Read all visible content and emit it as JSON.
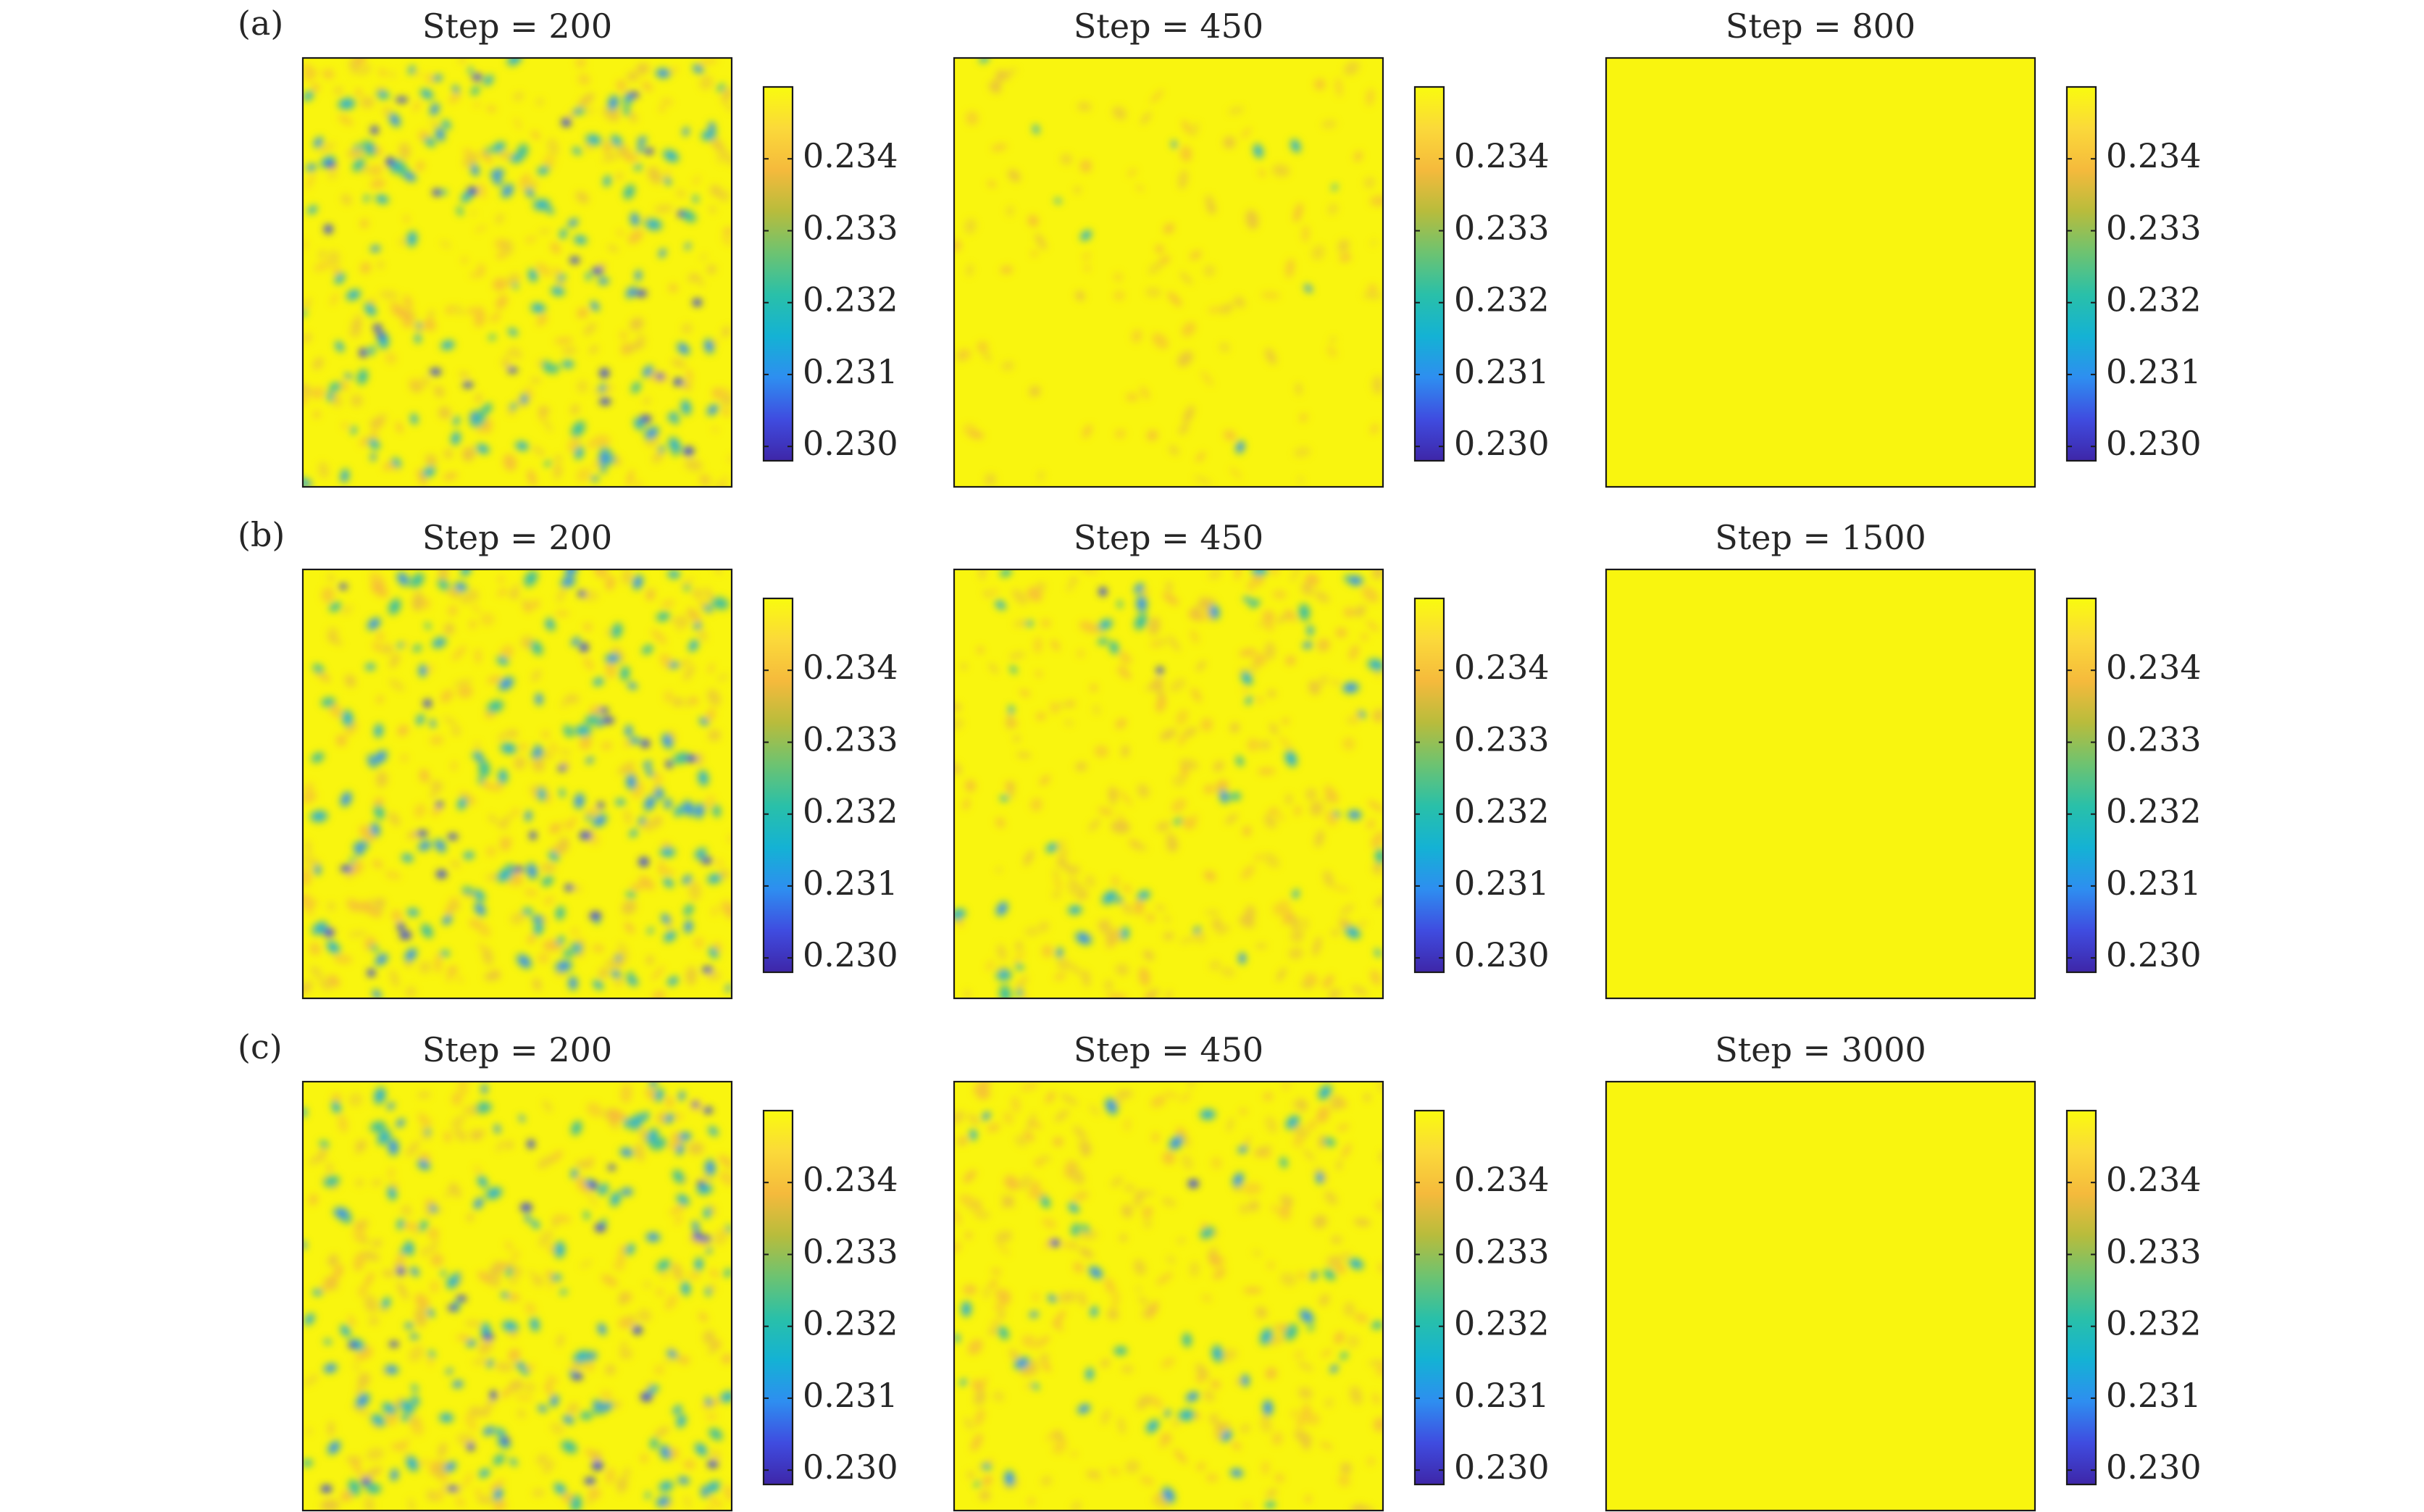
{
  "figure": {
    "row_labels": [
      "(a)",
      "(b)",
      "(c)"
    ],
    "colormap": {
      "name": "parula",
      "stops": [
        "#3e26a8",
        "#3f4ce0",
        "#2e8ef0",
        "#14b2d4",
        "#29c0a9",
        "#6dc371",
        "#b8bc3c",
        "#f5ba3c",
        "#fbd93a",
        "#f9fb0e"
      ]
    },
    "background_color": "#f9f50f"
  },
  "chart_data": [
    {
      "type": "heatmap",
      "row": 0,
      "col": 0,
      "title": "Step = 200",
      "pattern": "dense",
      "colorbar": {
        "range": [
          0.2298,
          0.235
        ],
        "ticks": [
          "0.234",
          "0.233",
          "0.232",
          "0.231",
          "0.230"
        ]
      }
    },
    {
      "type": "heatmap",
      "row": 0,
      "col": 1,
      "title": "Step = 450",
      "pattern": "sparse",
      "colorbar": {
        "range": [
          0.2298,
          0.235
        ],
        "ticks": [
          "0.234",
          "0.233",
          "0.232",
          "0.231",
          "0.230"
        ]
      }
    },
    {
      "type": "heatmap",
      "row": 0,
      "col": 2,
      "title": "Step = 800",
      "pattern": "uniform",
      "colorbar": {
        "range": [
          0.2298,
          0.235
        ],
        "ticks": [
          "0.234",
          "0.233",
          "0.232",
          "0.231",
          "0.230"
        ]
      }
    },
    {
      "type": "heatmap",
      "row": 1,
      "col": 0,
      "title": "Step = 200",
      "pattern": "dense",
      "colorbar": {
        "range": [
          0.2298,
          0.235
        ],
        "ticks": [
          "0.234",
          "0.233",
          "0.232",
          "0.231",
          "0.230"
        ]
      }
    },
    {
      "type": "heatmap",
      "row": 1,
      "col": 1,
      "title": "Step = 450",
      "pattern": "medium",
      "colorbar": {
        "range": [
          0.2298,
          0.235
        ],
        "ticks": [
          "0.234",
          "0.233",
          "0.232",
          "0.231",
          "0.230"
        ]
      }
    },
    {
      "type": "heatmap",
      "row": 1,
      "col": 2,
      "title": "Step = 1500",
      "pattern": "uniform",
      "colorbar": {
        "range": [
          0.2298,
          0.235
        ],
        "ticks": [
          "0.234",
          "0.233",
          "0.232",
          "0.231",
          "0.230"
        ]
      }
    },
    {
      "type": "heatmap",
      "row": 2,
      "col": 0,
      "title": "Step = 200",
      "pattern": "dense",
      "colorbar": {
        "range": [
          0.2298,
          0.235
        ],
        "ticks": [
          "0.234",
          "0.233",
          "0.232",
          "0.231",
          "0.230"
        ]
      }
    },
    {
      "type": "heatmap",
      "row": 2,
      "col": 1,
      "title": "Step = 450",
      "pattern": "medium",
      "colorbar": {
        "range": [
          0.2298,
          0.235
        ],
        "ticks": [
          "0.234",
          "0.233",
          "0.232",
          "0.231",
          "0.230"
        ]
      }
    },
    {
      "type": "heatmap",
      "row": 2,
      "col": 2,
      "title": "Step = 3000",
      "pattern": "uniform",
      "colorbar": {
        "range": [
          0.2298,
          0.235
        ],
        "ticks": [
          "0.234",
          "0.233",
          "0.232",
          "0.231",
          "0.230"
        ]
      }
    }
  ]
}
